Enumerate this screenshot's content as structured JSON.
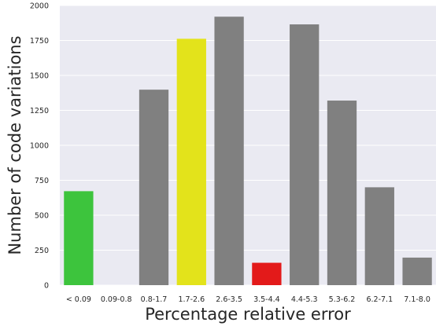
{
  "chart_data": {
    "type": "bar",
    "xlabel": "Percentage relative error",
    "ylabel": "Number of code variations",
    "ylim": [
      0,
      2000
    ],
    "yticks": [
      0,
      250,
      500,
      750,
      1000,
      1250,
      1500,
      1750,
      2000
    ],
    "grid": true,
    "categories": [
      "< 0.09",
      "0.09-0.8",
      "0.8-1.7",
      "1.7-2.6",
      "2.6-3.5",
      "3.5-4.4",
      "4.4-5.3",
      "5.3-6.2",
      "6.2-7.1",
      "7.1-8.0"
    ],
    "values": [
      672,
      0,
      1398,
      1762,
      1920,
      160,
      1865,
      1320,
      700,
      197
    ],
    "colors": [
      "#3dc43d",
      "#808080",
      "#808080",
      "#e3e31b",
      "#808080",
      "#e31a1a",
      "#808080",
      "#808080",
      "#808080",
      "#808080"
    ],
    "background_color": "#eaeaf2",
    "grid_color": "#ffffff"
  }
}
